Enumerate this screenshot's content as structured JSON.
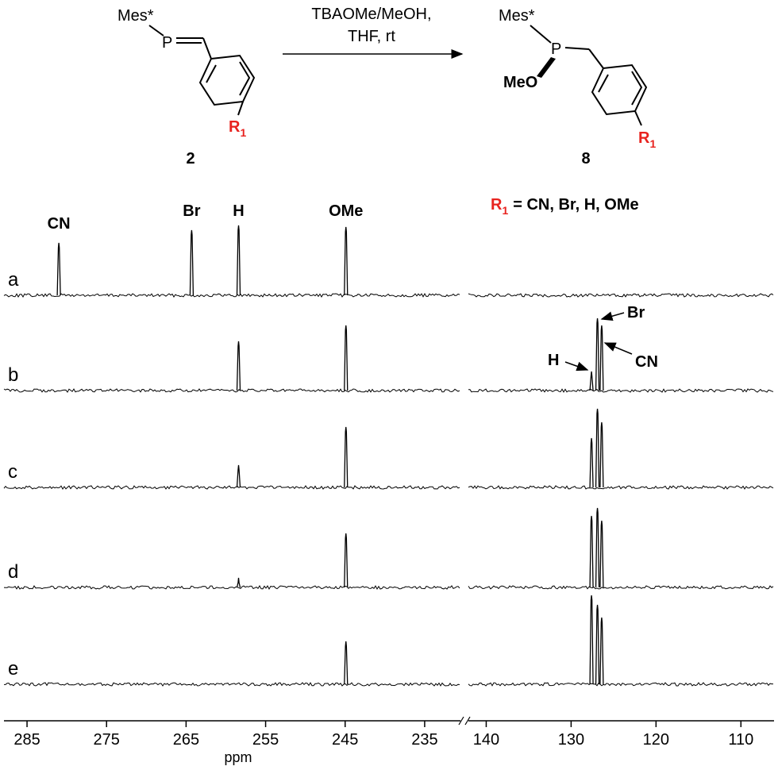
{
  "scheme": {
    "compound_2": {
      "group": "Mes*",
      "atom": "P",
      "substituent": {
        "symbol": "R",
        "subscript": "1"
      },
      "number": "2"
    },
    "conditions": [
      "TBAOMe/MeOH,",
      "THF, rt"
    ],
    "compound_8": {
      "group": "Mes*",
      "atom": "P",
      "methoxy": "MeO",
      "substituent": {
        "symbol": "R",
        "subscript": "1"
      },
      "number": "8"
    },
    "substituent_key": {
      "symbol": "R",
      "subscript": "1",
      "definition": "= CN, Br, H, OMe"
    }
  },
  "chart_data": {
    "type": "stacked-spectra",
    "x_label": "ppm",
    "segments": [
      {
        "xlim": [
          287.9,
          230.5
        ],
        "xticks": [
          285,
          275,
          265,
          255,
          245,
          235
        ]
      },
      {
        "xlim": [
          142.1,
          106.1
        ],
        "xticks": [
          140,
          130,
          120,
          110
        ]
      }
    ],
    "peak_labels": [
      {
        "text": "CN",
        "x": 281
      },
      {
        "text": "Br",
        "x": 264.3
      },
      {
        "text": "H",
        "x": 258.4
      },
      {
        "text": "OMe",
        "x": 244.9
      }
    ],
    "annotations": [
      {
        "text": "Br",
        "x": 126.9
      },
      {
        "text": "CN",
        "x": 126.4
      },
      {
        "text": "H",
        "x": 127.6
      }
    ],
    "series": [
      {
        "name": "a",
        "color": "#000000",
        "x": [
          281,
          264.3,
          258.4,
          244.9
        ],
        "values": [
          66,
          82,
          88,
          86
        ]
      },
      {
        "name": "b",
        "color": "#000000",
        "x": [
          258.4,
          244.9,
          127.6,
          126.9,
          126.4
        ],
        "values": [
          62,
          82,
          24,
          91,
          82
        ]
      },
      {
        "name": "c",
        "color": "#000000",
        "x": [
          258.4,
          244.9,
          127.6,
          126.9,
          126.4
        ],
        "values": [
          28,
          76,
          62,
          99,
          82
        ]
      },
      {
        "name": "d",
        "color": "#000000",
        "x": [
          258.4,
          244.9,
          127.6,
          126.9,
          126.4
        ],
        "values": [
          12,
          68,
          90,
          100,
          84
        ]
      },
      {
        "name": "e",
        "color": "#000000",
        "x": [
          244.9,
          127.6,
          126.9,
          126.4
        ],
        "values": [
          54,
          112,
          100,
          84
        ]
      }
    ]
  }
}
